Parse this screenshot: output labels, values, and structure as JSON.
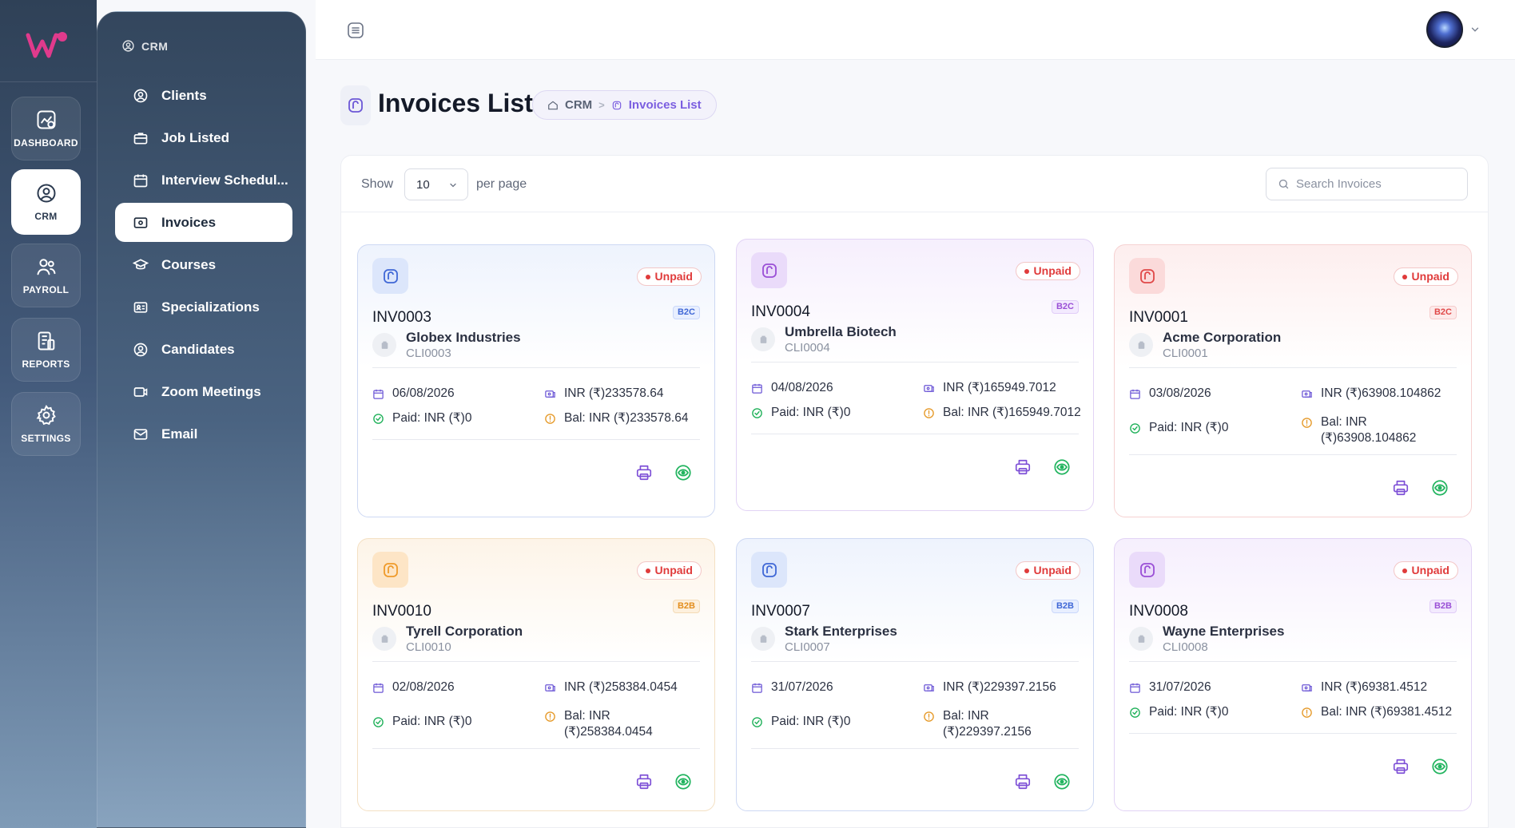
{
  "rail": {
    "items": [
      {
        "label": "DASHBOARD",
        "icon": "dashboard-icon"
      },
      {
        "label": "CRM",
        "icon": "user-circle-icon",
        "active": true
      },
      {
        "label": "PAYROLL",
        "icon": "users-icon"
      },
      {
        "label": "REPORTS",
        "icon": "report-icon"
      },
      {
        "label": "SETTINGS",
        "icon": "gear-icon"
      }
    ]
  },
  "subnav": {
    "heading": "CRM",
    "items": [
      {
        "label": "Clients",
        "icon": "user-circle-icon"
      },
      {
        "label": "Job Listed",
        "icon": "briefcase-icon"
      },
      {
        "label": "Interview Schedul...",
        "icon": "calendar-icon"
      },
      {
        "label": "Invoices",
        "icon": "invoice-icon",
        "active": true
      },
      {
        "label": "Courses",
        "icon": "graduation-icon"
      },
      {
        "label": "Specializations",
        "icon": "id-card-icon"
      },
      {
        "label": "Candidates",
        "icon": "user-circle-icon"
      },
      {
        "label": "Zoom Meetings",
        "icon": "video-icon"
      },
      {
        "label": "Email",
        "icon": "mail-icon"
      }
    ]
  },
  "page": {
    "title": "Invoices List",
    "breadcrumb": {
      "root": "CRM",
      "sep": ">",
      "current": "Invoices List"
    }
  },
  "toolbar": {
    "show_label": "Show",
    "page_size": "10",
    "per_page_label": "per page",
    "search_placeholder": "Search Invoices"
  },
  "colors": {
    "accent": "#7b5ee0",
    "unpaid": "#e03b3b",
    "paid": "#20b15a",
    "balance": "#e69b2c"
  },
  "invoices": [
    {
      "number": "INV0003",
      "status": "Unpaid",
      "type": "B2C",
      "client": "Globex Industries",
      "client_id": "CLI0003",
      "date": "06/08/2026",
      "amount": "INR (₹)233578.64",
      "paid": "Paid: INR (₹)0",
      "balance": "Bal: INR (₹)233578.64",
      "theme": "blue"
    },
    {
      "number": "INV0004",
      "status": "Unpaid",
      "type": "B2C",
      "client": "Umbrella Biotech",
      "client_id": "CLI0004",
      "date": "04/08/2026",
      "amount": "INR (₹)165949.7012",
      "paid": "Paid: INR (₹)0",
      "balance": "Bal: INR (₹)165949.7012",
      "theme": "purple"
    },
    {
      "number": "INV0001",
      "status": "Unpaid",
      "type": "B2C",
      "client": "Acme Corporation",
      "client_id": "CLI0001",
      "date": "03/08/2026",
      "amount": "INR (₹)63908.104862",
      "paid": "Paid: INR (₹)0",
      "balance": "Bal: INR (₹)63908.104862",
      "theme": "red"
    },
    {
      "number": "INV0010",
      "status": "Unpaid",
      "type": "B2B",
      "client": "Tyrell Corporation",
      "client_id": "CLI0010",
      "date": "02/08/2026",
      "amount": "INR (₹)258384.0454",
      "paid": "Paid: INR (₹)0",
      "balance": "Bal: INR (₹)258384.0454",
      "theme": "orange"
    },
    {
      "number": "INV0007",
      "status": "Unpaid",
      "type": "B2B",
      "client": "Stark Enterprises",
      "client_id": "CLI0007",
      "date": "31/07/2026",
      "amount": "INR (₹)229397.2156",
      "paid": "Paid: INR (₹)0",
      "balance": "Bal: INR (₹)229397.2156",
      "theme": "blue"
    },
    {
      "number": "INV0008",
      "status": "Unpaid",
      "type": "B2B",
      "client": "Wayne Enterprises",
      "client_id": "CLI0008",
      "date": "31/07/2026",
      "amount": "INR (₹)69381.4512",
      "paid": "Paid: INR (₹)0",
      "balance": "Bal: INR (₹)69381.4512",
      "theme": "purple"
    }
  ]
}
